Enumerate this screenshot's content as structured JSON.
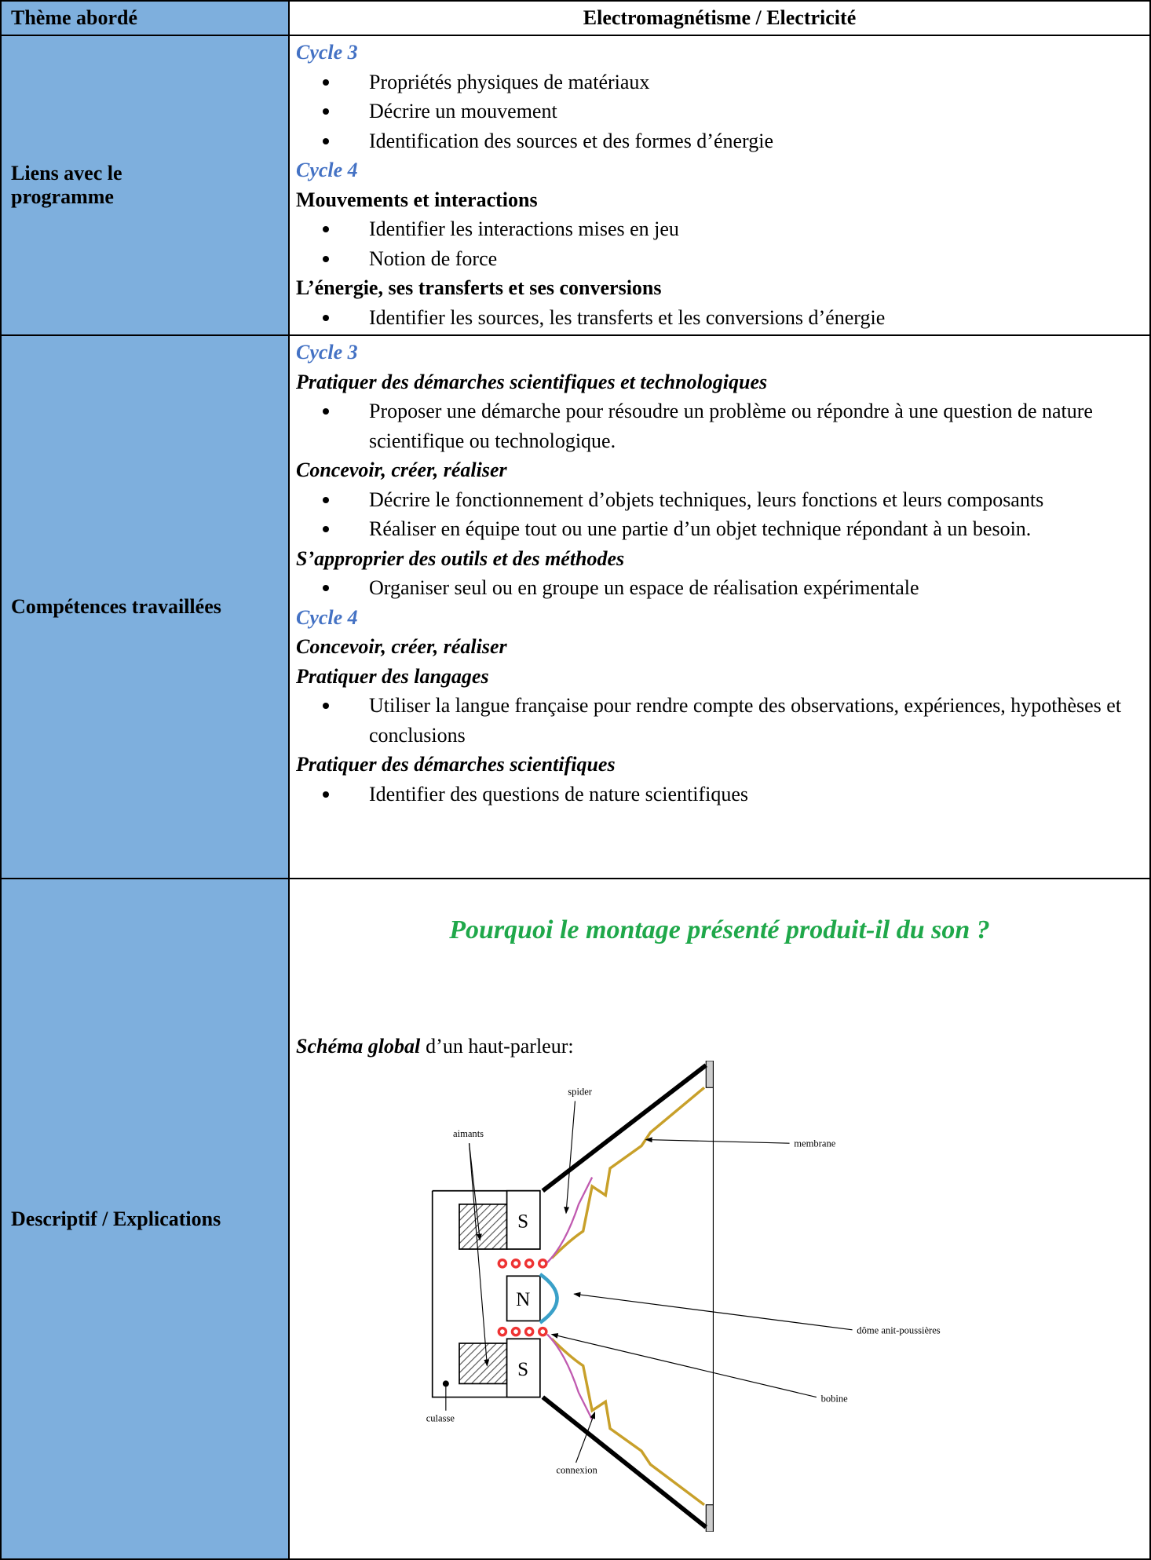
{
  "header": {
    "label": "Thème abordé",
    "title": "Electromagnétisme / Electricité"
  },
  "rows": [
    {
      "label": "Liens avec le programme",
      "cycles": [
        {
          "name": "Cycle 3",
          "groups": [
            {
              "bullets": [
                "Propriétés physiques de matériaux",
                "Décrire un mouvement",
                "Identification des sources et des formes d’énergie"
              ]
            }
          ]
        },
        {
          "name": "Cycle 4",
          "groups": [
            {
              "heading": "Mouvements et interactions",
              "bullets": [
                "Identifier les interactions mises en jeu",
                "Notion de force"
              ]
            },
            {
              "heading": "L’énergie, ses transferts et ses conversions",
              "bullets": [
                "Identifier les sources, les transferts et les conversions d’énergie"
              ]
            }
          ]
        }
      ]
    },
    {
      "label": "Compétences travaillées",
      "cycles": [
        {
          "name": "Cycle 3",
          "groups": [
            {
              "heading": "Pratiquer des démarches scientifiques et technologiques",
              "bullets": [
                "Proposer une démarche pour résoudre un problème ou répondre à une question de nature scientifique ou technologique."
              ]
            },
            {
              "heading": "Concevoir, créer, réaliser",
              "bullets": [
                "Décrire le fonctionnement d’objets techniques, leurs fonctions et leurs composants",
                "Réaliser en équipe tout ou une partie d’un objet technique répondant à un besoin."
              ]
            },
            {
              "heading": "S’approprier des outils et des méthodes",
              "bullets": [
                "Organiser seul ou en groupe un espace de réalisation expérimentale"
              ]
            }
          ]
        },
        {
          "name": "Cycle 4",
          "groups": [
            {
              "heading": "Concevoir, créer, réaliser"
            },
            {
              "heading": "Pratiquer des langages",
              "bullets": [
                "Utiliser la langue française pour rendre compte des observations, expériences, hypothèses et conclusions"
              ]
            },
            {
              "heading": "Pratiquer des démarches scientifiques",
              "bullets": [
                "Identifier des questions de nature scientifiques"
              ]
            }
          ]
        }
      ]
    },
    {
      "label": "Descriptif / Explications",
      "question": "Pourquoi le montage présenté produit-il du son ?",
      "schema": {
        "emphasis": "Schéma global",
        "text": "d’un haut-parleur:"
      },
      "diagram": {
        "labels": [
          "spider",
          "aimants",
          "membrane",
          "S",
          "N",
          "S",
          "dôme anit-poussières",
          "culasse",
          "bobine",
          "connexion"
        ]
      }
    }
  ]
}
